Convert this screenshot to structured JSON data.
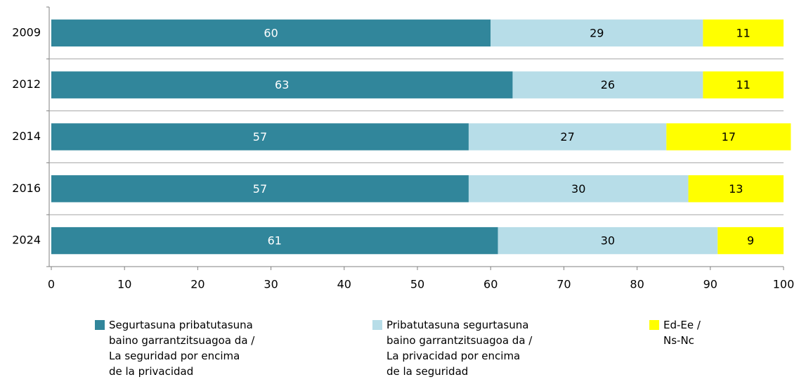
{
  "chart_data": {
    "type": "stacked-barh",
    "categories": [
      "2009",
      "2012",
      "2014",
      "2016",
      "2024"
    ],
    "series": [
      {
        "name": "Segurtasuna pribatutasuna\nbaino garrantzitsuagoa da /\nLa seguridad por encima\nde la privacidad",
        "color": "#31869b",
        "label_color": "#ffffff",
        "values": [
          60,
          63,
          57,
          57,
          61
        ]
      },
      {
        "name": "Pribatutasuna segurtasuna\nbaino garrantzitsuagoa da /\nLa privacidad por encima\nde la seguridad",
        "color": "#b7dde8",
        "label_color": "#000000",
        "values": [
          29,
          26,
          27,
          30,
          30
        ]
      },
      {
        "name": "Ed-Ee /\nNs-Nc",
        "color": "#ffff00",
        "label_color": "#000000",
        "values": [
          11,
          11,
          17,
          13,
          9
        ]
      }
    ],
    "xlim": [
      0,
      100
    ],
    "xticks": [
      0,
      10,
      20,
      30,
      40,
      50,
      60,
      70,
      80,
      90,
      100
    ],
    "legend": "bottom"
  }
}
